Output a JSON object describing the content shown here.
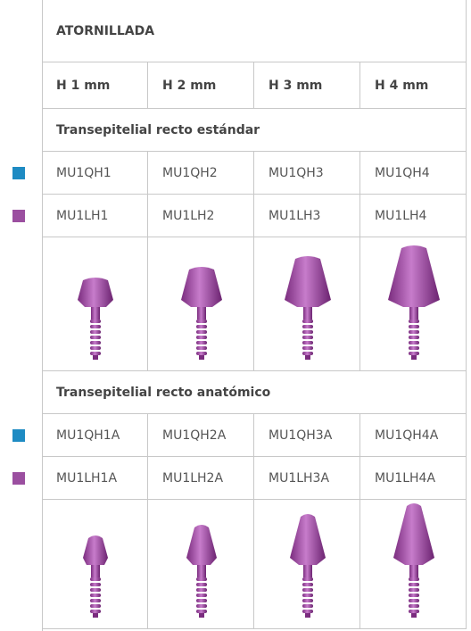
{
  "table": {
    "title": "ATORNILLADA",
    "columns": [
      "H 1 mm",
      "H 2 mm",
      "H 3 mm",
      "H 4 mm"
    ],
    "sections": [
      {
        "title": "Transepitelial recto estándar",
        "rows": [
          [
            "MU1QH1",
            "MU1QH2",
            "MU1QH3",
            "MU1QH4"
          ],
          [
            "MU1LH1",
            "MU1LH2",
            "MU1LH3",
            "MU1LH4"
          ]
        ]
      },
      {
        "title": "Transepitelial recto anatómico",
        "rows": [
          [
            "MU1QH1A",
            "MU1QH2A",
            "MU1QH3A",
            "MU1QH4A"
          ],
          [
            "MU1LH1A",
            "MU1LH2A",
            "MU1LH3A",
            "MU1LH4A"
          ]
        ]
      }
    ]
  }
}
